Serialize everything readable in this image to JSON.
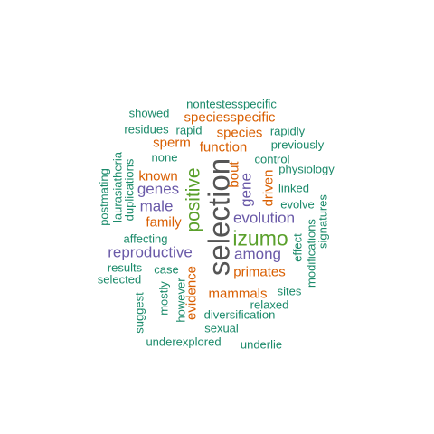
{
  "colors": {
    "gray": "#555555",
    "green": "#5aa02c",
    "purple": "#6a5aa8",
    "orange": "#d95f02",
    "teal": "#1b8a6a"
  },
  "words": [
    {
      "text": "selection",
      "color": "gray",
      "weight": 10
    },
    {
      "text": "izumo",
      "color": "green",
      "weight": 8
    },
    {
      "text": "positive",
      "color": "green",
      "weight": 7
    },
    {
      "text": "reproductive",
      "color": "purple",
      "weight": 6
    },
    {
      "text": "evolution",
      "color": "purple",
      "weight": 6
    },
    {
      "text": "among",
      "color": "purple",
      "weight": 6
    },
    {
      "text": "male",
      "color": "purple",
      "weight": 6
    },
    {
      "text": "genes",
      "color": "purple",
      "weight": 6
    },
    {
      "text": "gene",
      "color": "purple",
      "weight": 6
    },
    {
      "text": "primates",
      "color": "orange",
      "weight": 5
    },
    {
      "text": "mammals",
      "color": "orange",
      "weight": 5
    },
    {
      "text": "family",
      "color": "orange",
      "weight": 5
    },
    {
      "text": "known",
      "color": "orange",
      "weight": 5
    },
    {
      "text": "function",
      "color": "orange",
      "weight": 5
    },
    {
      "text": "species",
      "color": "orange",
      "weight": 5
    },
    {
      "text": "speciesspecific",
      "color": "orange",
      "weight": 5
    },
    {
      "text": "sperm",
      "color": "orange",
      "weight": 5
    },
    {
      "text": "bout",
      "color": "orange",
      "weight": 5
    },
    {
      "text": "driven",
      "color": "orange",
      "weight": 5
    },
    {
      "text": "evidence",
      "color": "orange",
      "weight": 5
    },
    {
      "text": "nontestesspecific",
      "color": "teal",
      "weight": 4
    },
    {
      "text": "showed",
      "color": "teal",
      "weight": 4
    },
    {
      "text": "residues",
      "color": "teal",
      "weight": 4
    },
    {
      "text": "rapid",
      "color": "teal",
      "weight": 4
    },
    {
      "text": "rapidly",
      "color": "teal",
      "weight": 4
    },
    {
      "text": "previously",
      "color": "teal",
      "weight": 4
    },
    {
      "text": "none",
      "color": "teal",
      "weight": 4
    },
    {
      "text": "control",
      "color": "teal",
      "weight": 4
    },
    {
      "text": "physiology",
      "color": "teal",
      "weight": 4
    },
    {
      "text": "linked",
      "color": "teal",
      "weight": 4
    },
    {
      "text": "evolve",
      "color": "teal",
      "weight": 4
    },
    {
      "text": "signatures",
      "color": "teal",
      "weight": 4
    },
    {
      "text": "effect",
      "color": "teal",
      "weight": 4
    },
    {
      "text": "modifications",
      "color": "teal",
      "weight": 4
    },
    {
      "text": "sites",
      "color": "teal",
      "weight": 4
    },
    {
      "text": "relaxed",
      "color": "teal",
      "weight": 4
    },
    {
      "text": "diversification",
      "color": "teal",
      "weight": 4
    },
    {
      "text": "sexual",
      "color": "teal",
      "weight": 4
    },
    {
      "text": "underlie",
      "color": "teal",
      "weight": 4
    },
    {
      "text": "underexplored",
      "color": "teal",
      "weight": 4
    },
    {
      "text": "suggest",
      "color": "teal",
      "weight": 4
    },
    {
      "text": "mostly",
      "color": "teal",
      "weight": 4
    },
    {
      "text": "however",
      "color": "teal",
      "weight": 4
    },
    {
      "text": "case",
      "color": "teal",
      "weight": 4
    },
    {
      "text": "results",
      "color": "teal",
      "weight": 4
    },
    {
      "text": "selected",
      "color": "teal",
      "weight": 4
    },
    {
      "text": "affecting",
      "color": "teal",
      "weight": 4
    },
    {
      "text": "postmating",
      "color": "teal",
      "weight": 4
    },
    {
      "text": "laurasiatheria",
      "color": "teal",
      "weight": 4
    },
    {
      "text": "duplications",
      "color": "teal",
      "weight": 4
    }
  ]
}
